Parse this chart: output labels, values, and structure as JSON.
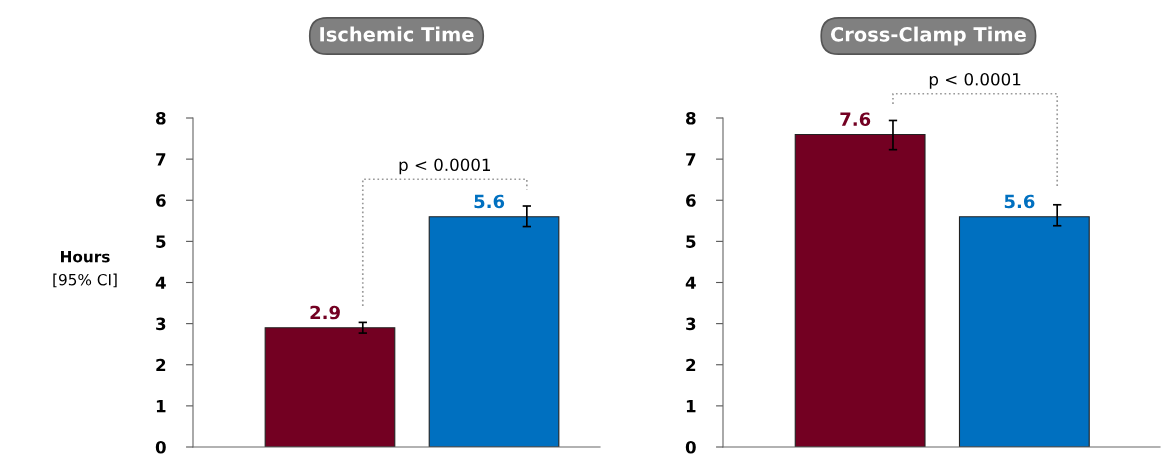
{
  "chart_data": [
    {
      "type": "bar",
      "title": "Ischemic Time",
      "ylabel": "Hours\n[95% CI]",
      "categories": [
        null,
        null
      ],
      "values": [
        2.9,
        5.6
      ],
      "colors": [
        "#730022",
        "#0070c0"
      ],
      "errors": [
        [
          2.77,
          3.03
        ],
        [
          5.36,
          5.86
        ]
      ],
      "ylim": [
        0,
        8
      ],
      "yticks": [
        0,
        1,
        2,
        3,
        4,
        5,
        6,
        7,
        8
      ],
      "data_labels": true,
      "grid": false,
      "annotations": [
        "p < 0.0001"
      ]
    },
    {
      "type": "bar",
      "title": "Cross-Clamp Time",
      "categories": [
        null,
        null
      ],
      "values": [
        7.6,
        5.6
      ],
      "colors": [
        "#730022",
        "#0070c0"
      ],
      "errors": [
        [
          7.23,
          7.94
        ],
        [
          5.38,
          5.89
        ]
      ],
      "ylim": [
        0,
        8
      ],
      "yticks": [
        0,
        1,
        2,
        3,
        4,
        5,
        6,
        7,
        8
      ],
      "data_labels": true,
      "grid": false,
      "annotations": [
        "p < 0.0001"
      ]
    }
  ]
}
